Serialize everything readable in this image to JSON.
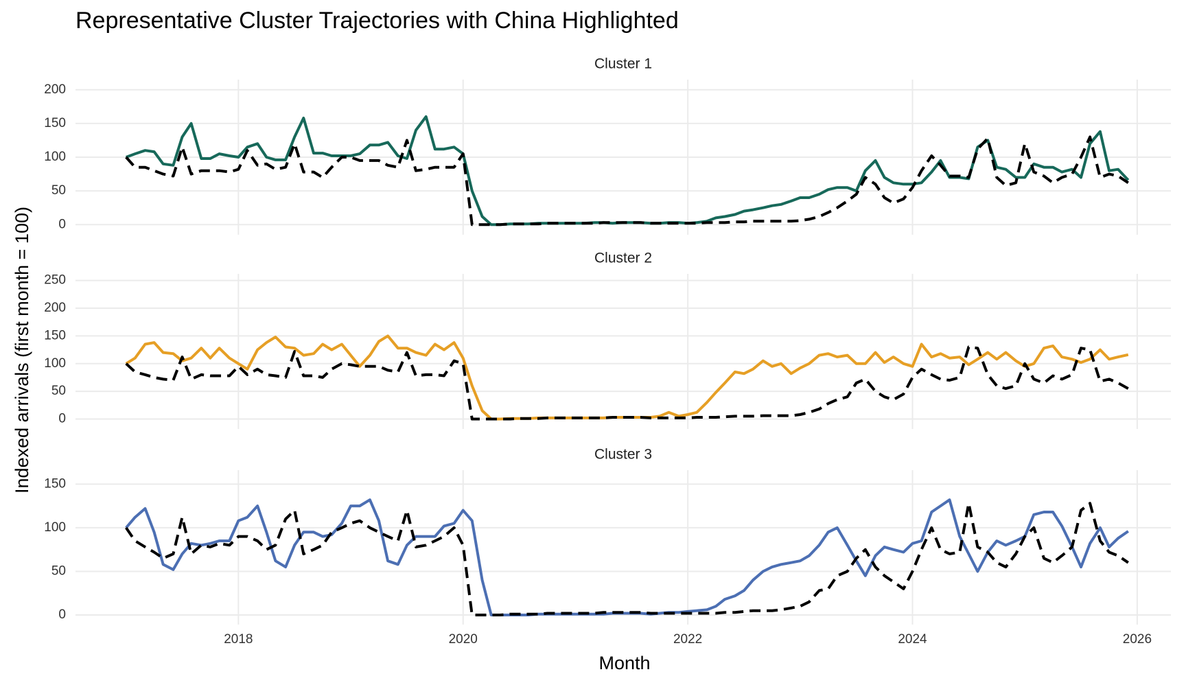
{
  "chart_data": {
    "type": "line",
    "title": "Representative Cluster Trajectories with China Highlighted",
    "xlabel": "Month",
    "ylabel": "Indexed arrivals (first month = 100)",
    "xlim": [
      2016.55,
      2026.3
    ],
    "xticks": [
      2018,
      2020,
      2022,
      2024,
      2026
    ],
    "grid": true,
    "x": [
      2017,
      2017.08,
      2017.17,
      2017.25,
      2017.33,
      2017.42,
      2017.5,
      2017.58,
      2017.67,
      2017.75,
      2017.83,
      2017.92,
      2018,
      2018.08,
      2018.17,
      2018.25,
      2018.33,
      2018.42,
      2018.5,
      2018.58,
      2018.67,
      2018.75,
      2018.83,
      2018.92,
      2019,
      2019.08,
      2019.17,
      2019.25,
      2019.33,
      2019.42,
      2019.5,
      2019.58,
      2019.67,
      2019.75,
      2019.83,
      2019.92,
      2020,
      2020.08,
      2020.17,
      2020.25,
      2020.33,
      2020.42,
      2020.5,
      2020.58,
      2020.67,
      2020.75,
      2020.83,
      2020.92,
      2021,
      2021.08,
      2021.17,
      2021.25,
      2021.33,
      2021.42,
      2021.5,
      2021.58,
      2021.67,
      2021.75,
      2021.83,
      2021.92,
      2022,
      2022.08,
      2022.17,
      2022.25,
      2022.33,
      2022.42,
      2022.5,
      2022.58,
      2022.67,
      2022.75,
      2022.83,
      2022.92,
      2023,
      2023.08,
      2023.17,
      2023.25,
      2023.33,
      2023.42,
      2023.5,
      2023.58,
      2023.67,
      2023.75,
      2023.83,
      2023.92,
      2024,
      2024.08,
      2024.17,
      2024.25,
      2024.33,
      2024.42,
      2024.5,
      2024.58,
      2024.67,
      2024.75,
      2024.83,
      2024.92,
      2025,
      2025.08,
      2025.17,
      2025.25,
      2025.33,
      2025.42,
      2025.5,
      2025.58,
      2025.67,
      2025.75,
      2025.83,
      2025.92
    ],
    "facets": [
      {
        "title": "Cluster 1",
        "ylim": [
          -15,
          215
        ],
        "yticks": [
          0,
          50,
          100,
          150,
          200
        ],
        "series": [
          {
            "color": "#17695a",
            "dashed": false,
            "values": [
              100,
              105,
              110,
              108,
              90,
              88,
              130,
              150,
              98,
              98,
              105,
              102,
              100,
              115,
              120,
              100,
              96,
              96,
              130,
              158,
              106,
              106,
              102,
              102,
              102,
              105,
              118,
              118,
              122,
              102,
              98,
              140,
              160,
              112,
              112,
              115,
              105,
              50,
              12,
              0,
              0,
              1,
              1,
              1,
              2,
              2,
              2,
              2,
              2,
              2,
              3,
              3,
              2,
              3,
              3,
              3,
              2,
              2,
              3,
              3,
              2,
              3,
              5,
              10,
              12,
              15,
              20,
              22,
              25,
              28,
              30,
              35,
              40,
              40,
              45,
              52,
              55,
              55,
              50,
              80,
              95,
              70,
              62,
              60,
              60,
              62,
              78,
              95,
              70,
              70,
              68,
              115,
              125,
              85,
              82,
              70,
              70,
              90,
              85,
              85,
              78,
              82,
              70,
              120,
              138,
              80,
              82,
              66
            ]
          },
          {
            "color": "#000000",
            "dashed": true,
            "values": [
              100,
              85,
              85,
              80,
              75,
              72,
              115,
              75,
              80,
              80,
              80,
              78,
              82,
              110,
              88,
              90,
              82,
              85,
              120,
              78,
              78,
              70,
              85,
              100,
              100,
              95,
              95,
              95,
              88,
              85,
              125,
              80,
              82,
              85,
              85,
              85,
              105,
              0,
              0,
              0,
              0,
              1,
              1,
              1,
              1,
              2,
              2,
              2,
              2,
              2,
              2,
              3,
              3,
              3,
              3,
              3,
              2,
              2,
              2,
              2,
              2,
              2,
              3,
              3,
              3,
              4,
              4,
              5,
              5,
              5,
              5,
              5,
              6,
              8,
              12,
              18,
              25,
              35,
              45,
              70,
              60,
              40,
              32,
              38,
              55,
              80,
              102,
              88,
              72,
              72,
              70,
              112,
              128,
              70,
              58,
              62,
              120,
              78,
              72,
              62,
              70,
              75,
              100,
              130,
              70,
              75,
              72,
              62
            ]
          }
        ]
      },
      {
        "title": "Cluster 2",
        "ylim": [
          -18,
          262
        ],
        "yticks": [
          0,
          50,
          100,
          150,
          200,
          250
        ],
        "series": [
          {
            "color": "#e69f25",
            "dashed": false,
            "values": [
              100,
              110,
              135,
              138,
              120,
              118,
              105,
              110,
              128,
              110,
              128,
              110,
              100,
              90,
              125,
              138,
              148,
              130,
              128,
              115,
              118,
              135,
              125,
              135,
              115,
              95,
              115,
              140,
              150,
              128,
              128,
              120,
              115,
              135,
              125,
              138,
              110,
              60,
              15,
              0,
              0,
              1,
              1,
              1,
              2,
              2,
              2,
              2,
              2,
              2,
              2,
              2,
              3,
              3,
              3,
              3,
              3,
              5,
              12,
              5,
              8,
              12,
              30,
              48,
              65,
              85,
              82,
              90,
              105,
              95,
              100,
              82,
              92,
              100,
              115,
              118,
              112,
              115,
              100,
              100,
              120,
              102,
              112,
              100,
              95,
              135,
              112,
              118,
              110,
              112,
              98,
              108,
              120,
              108,
              120,
              105,
              95,
              100,
              128,
              132,
              112,
              108,
              102,
              108,
              125,
              108,
              112,
              116
            ]
          },
          {
            "color": "#000000",
            "dashed": true,
            "values": [
              100,
              85,
              80,
              75,
              72,
              70,
              112,
              72,
              80,
              78,
              78,
              78,
              95,
              80,
              90,
              80,
              78,
              75,
              122,
              78,
              78,
              75,
              90,
              100,
              98,
              95,
              95,
              95,
              88,
              85,
              120,
              78,
              80,
              80,
              78,
              105,
              100,
              0,
              0,
              0,
              0,
              0,
              1,
              1,
              1,
              2,
              2,
              2,
              2,
              2,
              2,
              2,
              3,
              3,
              3,
              3,
              2,
              2,
              2,
              2,
              2,
              3,
              3,
              3,
              4,
              5,
              5,
              5,
              6,
              6,
              6,
              6,
              8,
              12,
              18,
              28,
              35,
              40,
              65,
              72,
              50,
              40,
              35,
              45,
              75,
              90,
              80,
              72,
              70,
              75,
              130,
              128,
              80,
              60,
              55,
              60,
              100,
              72,
              65,
              78,
              72,
              80,
              128,
              125,
              68,
              72,
              65,
              55
            ]
          }
        ]
      },
      {
        "title": "Cluster 3",
        "ylim": [
          -11,
          166
        ],
        "yticks": [
          0,
          50,
          100,
          150
        ],
        "series": [
          {
            "color": "#4c6fb3",
            "dashed": false,
            "values": [
              100,
              112,
              122,
              95,
              58,
              52,
              70,
              82,
              80,
              82,
              85,
              85,
              108,
              112,
              125,
              95,
              62,
              55,
              80,
              95,
              95,
              90,
              92,
              105,
              125,
              125,
              132,
              108,
              62,
              58,
              80,
              90,
              90,
              90,
              102,
              105,
              120,
              108,
              40,
              0,
              0,
              0,
              0,
              0,
              1,
              1,
              1,
              1,
              1,
              1,
              1,
              1,
              2,
              2,
              2,
              2,
              1,
              2,
              3,
              3,
              4,
              5,
              6,
              10,
              18,
              22,
              28,
              40,
              50,
              55,
              58,
              60,
              62,
              68,
              80,
              95,
              100,
              80,
              62,
              45,
              68,
              78,
              75,
              72,
              82,
              85,
              118,
              125,
              132,
              90,
              70,
              50,
              72,
              85,
              80,
              85,
              90,
              115,
              118,
              118,
              102,
              78,
              55,
              82,
              100,
              78,
              88,
              96
            ]
          },
          {
            "color": "#000000",
            "dashed": true,
            "values": [
              100,
              85,
              78,
              72,
              65,
              70,
              112,
              70,
              80,
              78,
              82,
              80,
              90,
              90,
              85,
              75,
              80,
              110,
              120,
              70,
              75,
              80,
              95,
              100,
              105,
              108,
              100,
              95,
              90,
              85,
              120,
              78,
              80,
              85,
              90,
              100,
              80,
              0,
              0,
              0,
              0,
              1,
              1,
              1,
              1,
              2,
              2,
              2,
              2,
              2,
              2,
              3,
              3,
              3,
              3,
              3,
              2,
              2,
              2,
              2,
              2,
              2,
              2,
              2,
              3,
              3,
              4,
              5,
              5,
              5,
              6,
              8,
              10,
              15,
              28,
              30,
              45,
              50,
              65,
              75,
              55,
              45,
              38,
              30,
              50,
              75,
              100,
              75,
              70,
              72,
              128,
              78,
              72,
              60,
              55,
              70,
              90,
              100,
              65,
              60,
              68,
              78,
              120,
              128,
              85,
              72,
              68,
              60
            ]
          }
        ]
      }
    ]
  }
}
